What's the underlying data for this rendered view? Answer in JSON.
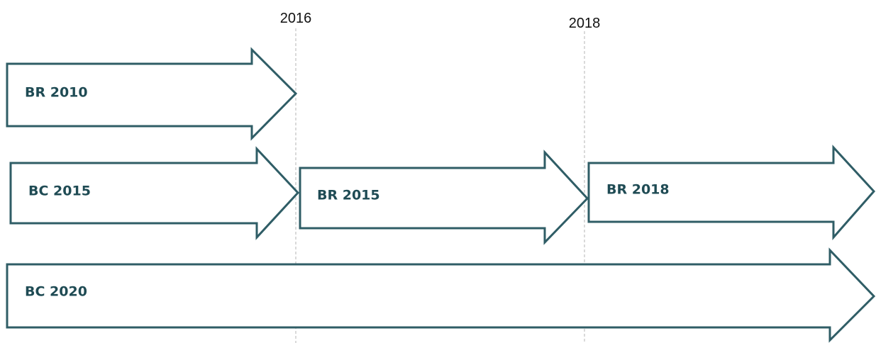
{
  "years": [
    "2016",
    "2018"
  ],
  "arrows": [
    "BR 2010",
    "BC 2015",
    "BR 2015",
    "BR 2018",
    "BC 2020"
  ]
}
